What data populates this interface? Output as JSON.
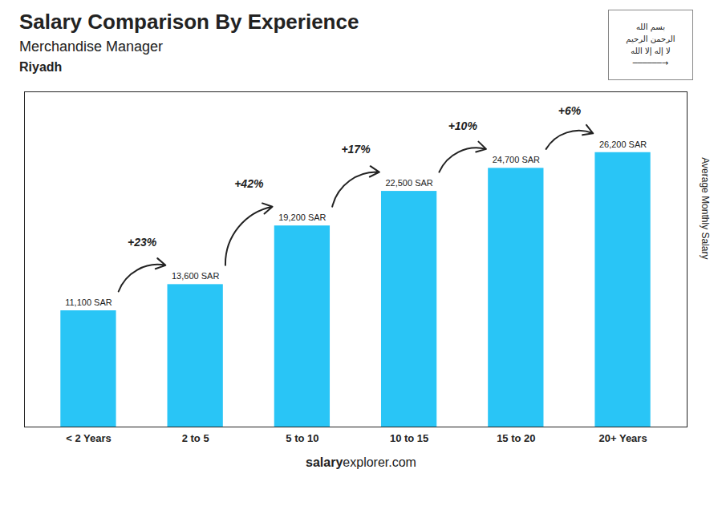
{
  "chart_data": {
    "type": "bar",
    "title": "Salary Comparison By Experience",
    "subtitle": "Merchandise Manager",
    "city": "Riyadh",
    "ylabel": "Average Monthly Salary",
    "categories": [
      "< 2 Years",
      "2 to 5",
      "5 to 10",
      "10 to 15",
      "15 to 20",
      "20+ Years"
    ],
    "values": [
      11100,
      13600,
      19200,
      22500,
      24700,
      26200
    ],
    "value_labels": [
      "11,100 SAR",
      "13,600 SAR",
      "19,200 SAR",
      "22,500 SAR",
      "24,700 SAR",
      "26,200 SAR"
    ],
    "data_labels": true,
    "color": "#29C5F6",
    "annotations": [
      "+23%",
      "+42%",
      "+17%",
      "+10%",
      "+6%"
    ],
    "ylim": [
      0,
      32000
    ],
    "tick_labels": "x",
    "grid": false,
    "flag_text": [
      "بسم الله",
      "الرحمن الرحيم",
      "لا إله إلا الله",
      "──────→"
    ],
    "watermark": [
      "salary",
      "explorer.com"
    ]
  }
}
